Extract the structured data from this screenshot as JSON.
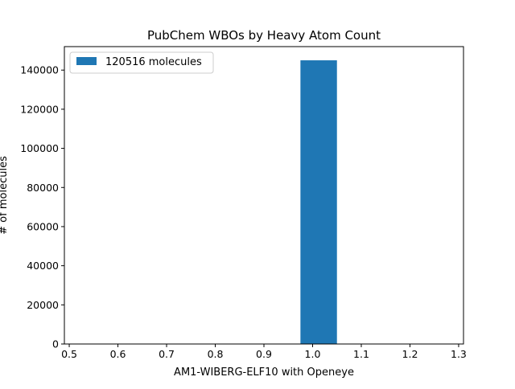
{
  "chart_data": {
    "type": "bar",
    "title": "PubChem WBOs by Heavy Atom Count",
    "xlabel": "AM1-WIBERG-ELF10 with Openeye",
    "ylabel": "# of molecules",
    "xlim": [
      0.49,
      1.31
    ],
    "ylim": [
      0,
      152000
    ],
    "xticks": [
      0.5,
      0.6,
      0.7,
      0.8,
      0.9,
      1.0,
      1.1,
      1.2,
      1.3
    ],
    "xtick_labels": [
      "0.5",
      "0.6",
      "0.7",
      "0.8",
      "0.9",
      "1.0",
      "1.1",
      "1.2",
      "1.3"
    ],
    "yticks": [
      0,
      20000,
      40000,
      60000,
      80000,
      100000,
      120000,
      140000
    ],
    "ytick_labels": [
      "0",
      "20000",
      "40000",
      "60000",
      "80000",
      "100000",
      "120000",
      "140000"
    ],
    "series": [
      {
        "name": "120516 molecules",
        "color": "#1f77b4",
        "bins": [
          {
            "x0": 0.975,
            "x1": 1.05,
            "value": 145000
          }
        ]
      }
    ],
    "legend": {
      "position": "top-left"
    },
    "grid": false
  }
}
